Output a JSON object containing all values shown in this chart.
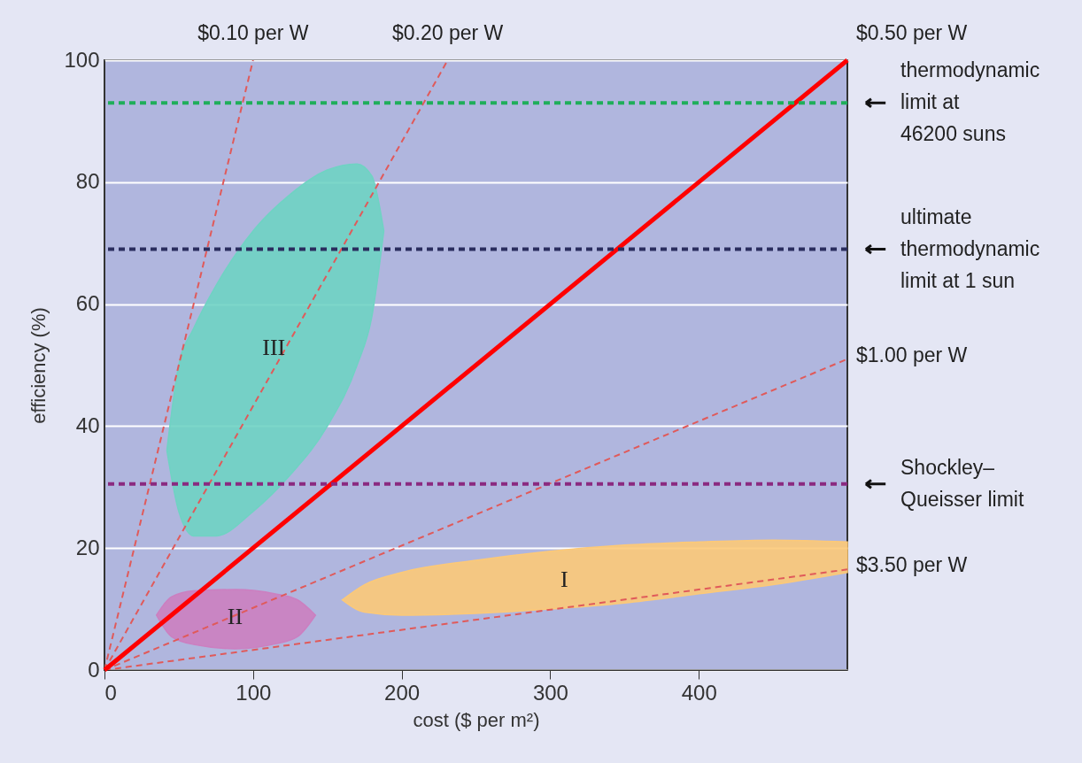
{
  "chart_data": {
    "type": "line",
    "xlabel": "cost ($ per m²)",
    "ylabel": "efficiency (%)",
    "xlim": [
      0,
      500
    ],
    "ylim": [
      0,
      100
    ],
    "xticks": [
      0,
      100,
      200,
      300,
      400
    ],
    "yticks": [
      0,
      20,
      40,
      60,
      80,
      100
    ],
    "grid": "y",
    "series": [
      {
        "type": "area",
        "color": "#fcc978",
        "x": [
          160,
          175,
          200,
          250,
          300,
          350,
          400,
          450,
          500
        ],
        "values": [
          null,
          null,
          null,
          null,
          null,
          null,
          null,
          null,
          null
        ],
        "lower": [
          11.5,
          9.5,
          9,
          9.3,
          10,
          11,
          12.5,
          14,
          16
        ],
        "upper": [
          11.5,
          14,
          16,
          18,
          19.5,
          20.5,
          21,
          21.3,
          21
        ]
      },
      {
        "type": "area",
        "color": "#cc7fc0",
        "x": [
          35,
          45,
          60,
          88,
          115,
          130,
          142
        ],
        "values": [
          null,
          null,
          null,
          null,
          null,
          null,
          null
        ],
        "lower": [
          9,
          5.5,
          4.2,
          3.5,
          4.3,
          5.5,
          9
        ],
        "upper": [
          9,
          12,
          13,
          13.2,
          12.5,
          11.5,
          9
        ]
      },
      {
        "type": "area",
        "color": "#6fd3c3",
        "x": [
          42,
          50,
          60,
          75,
          100,
          125,
          150,
          170,
          180,
          188
        ],
        "values": [
          null,
          null,
          null,
          null,
          null,
          null,
          null,
          null,
          null,
          null
        ],
        "lower": [
          36,
          26,
          22,
          22,
          26,
          32,
          40,
          50,
          58,
          72
        ],
        "upper": [
          36,
          50,
          56,
          63,
          72,
          78,
          82,
          83,
          81,
          72
        ]
      },
      {
        "name": "$0.10 per W",
        "line_style": "dashed",
        "color": "#e05a5a",
        "x": [
          0,
          100
        ],
        "values": [
          0,
          100
        ]
      },
      {
        "name": "$0.20 per W",
        "line_style": "dashed",
        "color": "#e05a5a",
        "x": [
          0,
          231
        ],
        "values": [
          0,
          100
        ]
      },
      {
        "name": "$1.00 per W",
        "line_style": "dashed",
        "color": "#e05a5a",
        "x": [
          0,
          500
        ],
        "values": [
          0,
          51
        ]
      },
      {
        "name": "$3.50 per W",
        "line_style": "dashed",
        "color": "#e05a5a",
        "x": [
          0,
          500
        ],
        "values": [
          0,
          16.5
        ]
      },
      {
        "name": "$0.50 per W",
        "line_style": "solid",
        "color": "#ff0000",
        "x": [
          0,
          500
        ],
        "values": [
          0,
          100
        ]
      }
    ],
    "ref_lines": [
      {
        "axis": "y",
        "value": 93,
        "label": "thermodynamic\nlimit at\n46200 suns",
        "color": "#1fae5a",
        "line_style": "dashed"
      },
      {
        "axis": "y",
        "value": 69,
        "label": "ultimate\nthermodynamic\nlimit at 1 sun",
        "color": "#2a2d5e",
        "line_style": "dashed"
      },
      {
        "axis": "y",
        "value": 30.5,
        "label": "Shockley–\nQueisser limit",
        "color": "#8a2a80",
        "line_style": "dashed"
      }
    ],
    "annotations": [
      "I",
      "II",
      "III"
    ]
  }
}
